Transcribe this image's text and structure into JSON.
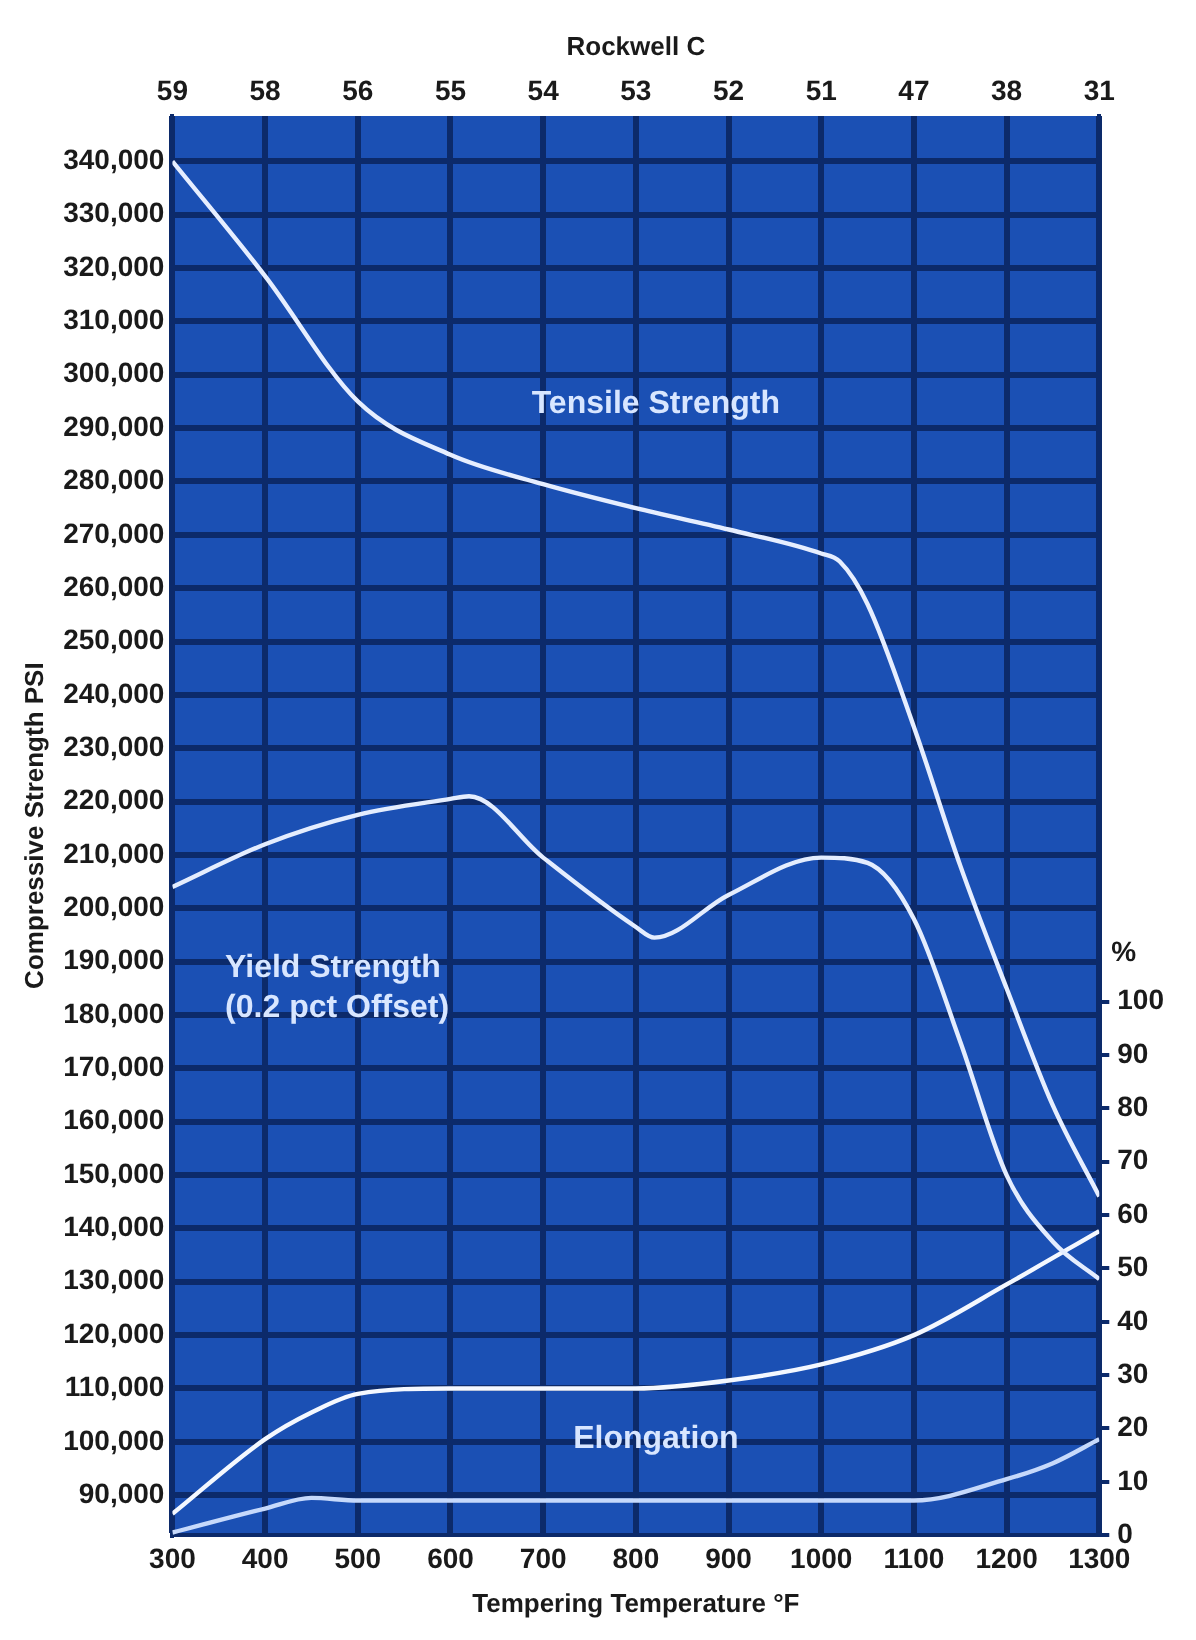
{
  "chart_data": {
    "type": "line",
    "xlabel": "Tempering Temperature °F",
    "ylabel": "Compressive Strength PSI",
    "y2label": "%",
    "x2label": "Rockwell C",
    "xlim": [
      300,
      1300
    ],
    "xticks": [
      300,
      400,
      500,
      600,
      700,
      800,
      900,
      1000,
      1100,
      1200,
      1300
    ],
    "ylim": [
      82500,
      348500
    ],
    "yticks": [
      {
        "value": 90000,
        "label": "90,000"
      },
      {
        "value": 100000,
        "label": "100,000"
      },
      {
        "value": 110000,
        "label": "110,000"
      },
      {
        "value": 120000,
        "label": "120,000"
      },
      {
        "value": 130000,
        "label": "130,000"
      },
      {
        "value": 140000,
        "label": "140,000"
      },
      {
        "value": 150000,
        "label": "150,000"
      },
      {
        "value": 160000,
        "label": "160,000"
      },
      {
        "value": 170000,
        "label": "170,000"
      },
      {
        "value": 180000,
        "label": "180,000"
      },
      {
        "value": 190000,
        "label": "190,000"
      },
      {
        "value": 200000,
        "label": "200,000"
      },
      {
        "value": 210000,
        "label": "210,000"
      },
      {
        "value": 220000,
        "label": "220,000"
      },
      {
        "value": 230000,
        "label": "230,000"
      },
      {
        "value": 240000,
        "label": "240,000"
      },
      {
        "value": 250000,
        "label": "250,000"
      },
      {
        "value": 260000,
        "label": "260,000"
      },
      {
        "value": 270000,
        "label": "270,000"
      },
      {
        "value": 280000,
        "label": "280,000"
      },
      {
        "value": 290000,
        "label": "290,000"
      },
      {
        "value": 300000,
        "label": "300,000"
      },
      {
        "value": 310000,
        "label": "310,000"
      },
      {
        "value": 320000,
        "label": "320,000"
      },
      {
        "value": 330000,
        "label": "330,000"
      },
      {
        "value": 340000,
        "label": "340,000"
      }
    ],
    "y2lim": [
      0,
      266
    ],
    "y2ticks": [
      0,
      10,
      20,
      30,
      40,
      50,
      60,
      70,
      80,
      90,
      100
    ],
    "grid": true,
    "legend": false,
    "marker": "none",
    "line_style": "solid",
    "annotations": [
      "Elongation",
      "59",
      "58",
      "56",
      "55",
      "54",
      "53",
      "52",
      "51",
      "47",
      "38",
      "31"
    ],
    "series": [
      {
        "name": "Tensile Strength",
        "color": "#e6eeff",
        "x": [
          300,
          400,
          500,
          600,
          700,
          800,
          900,
          1000,
          1020,
          1050,
          1100,
          1150,
          1200,
          1250,
          1300
        ],
        "values": [
          340000,
          318500,
          295000,
          285000,
          279500,
          275000,
          271000,
          266500,
          265000,
          257000,
          234000,
          208000,
          185000,
          163000,
          146000
        ]
      },
      {
        "name": "Yield Strength\n(0.2 pct Offset)",
        "color": "#e4edfe",
        "x": [
          300,
          400,
          500,
          600,
          620,
          700,
          800,
          820,
          900,
          1000,
          1050,
          1100,
          1150,
          1200,
          1250,
          1300
        ],
        "values": [
          204000,
          212000,
          217500,
          220500,
          221000,
          209500,
          196500,
          194500,
          202500,
          209500,
          208500,
          198000,
          175000,
          150000,
          137500,
          130500
        ]
      },
      {
        "color": "#f4f8ff",
        "axis": "y2",
        "x": [
          300,
          400,
          450,
          500,
          600,
          700,
          800,
          900,
          1000,
          1100,
          1200,
          1300
        ],
        "values": [
          4,
          18,
          23,
          26.5,
          27.5,
          27.5,
          27.5,
          29,
          32,
          37.5,
          47,
          57
        ]
      },
      {
        "color": "#c6d9fb",
        "axis": "y2",
        "x": [
          300,
          400,
          450,
          500,
          600,
          700,
          800,
          900,
          1000,
          1100,
          1200,
          1250,
          1300
        ],
        "values": [
          0.5,
          5,
          7,
          6.5,
          6.5,
          6.5,
          6.5,
          6.5,
          6.5,
          6.5,
          10.5,
          13.5,
          18
        ]
      }
    ]
  }
}
